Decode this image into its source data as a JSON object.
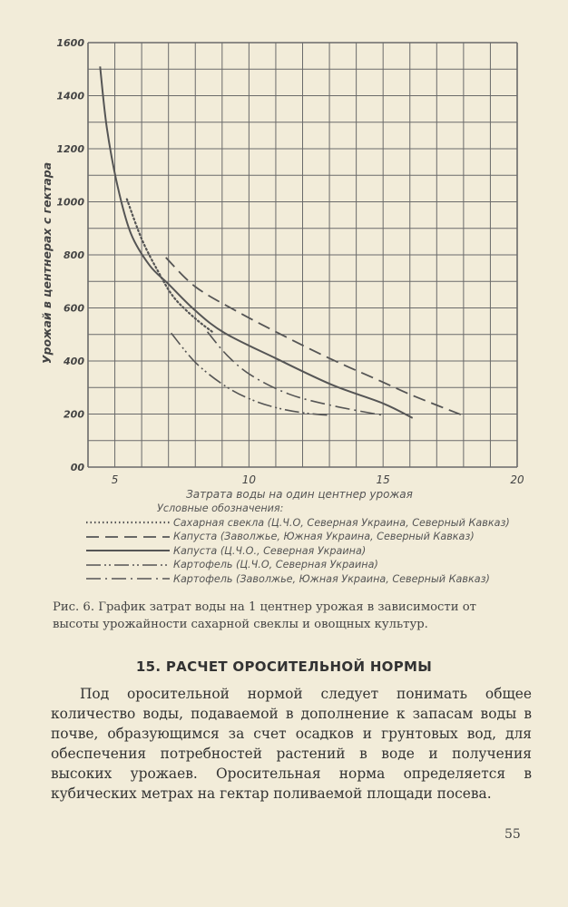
{
  "chart_data": {
    "type": "line",
    "xlabel": "Затрата воды на один центнер урожая",
    "ylabel": "Урожай в центнерах с гектара",
    "xlim": [
      4,
      20
    ],
    "ylim": [
      0,
      1600
    ],
    "x_ticks": [
      "5",
      "10",
      "15",
      "20"
    ],
    "x_tick_values": [
      5,
      10,
      15,
      20
    ],
    "y_ticks": [
      "1600",
      "1400",
      "1200",
      "1000",
      "800",
      "600",
      "400",
      "200",
      "00"
    ],
    "y_tick_values": [
      1600,
      1400,
      1200,
      1000,
      800,
      600,
      400,
      200,
      0
    ],
    "grid": true,
    "grid_step_x": 1,
    "grid_step_y": 100,
    "legend_title": "Условные обозначения:",
    "legend_placement": "below",
    "series": [
      {
        "name": "Сахарная свекла (Ц.Ч.О, Северная Украина, Северный Кавказ)",
        "style": "dotted",
        "points": [
          [
            5.45,
            1010
          ],
          [
            6.0,
            860
          ],
          [
            6.6,
            740
          ],
          [
            7.2,
            640
          ],
          [
            8.0,
            560
          ],
          [
            8.7,
            505
          ]
        ]
      },
      {
        "name": "Капуста (Заволжье, Южная Украина, Северный Кавказ)",
        "style": "dashed",
        "points": [
          [
            6.9,
            790
          ],
          [
            8.0,
            680
          ],
          [
            9.5,
            590
          ],
          [
            11.1,
            505
          ],
          [
            13.0,
            410
          ],
          [
            15.0,
            320
          ],
          [
            16.1,
            270
          ],
          [
            18.1,
            190
          ]
        ]
      },
      {
        "name": "Капуста (Ц.Ч.О., Северная Украина)",
        "style": "solid",
        "points": [
          [
            4.45,
            1510
          ],
          [
            4.7,
            1280
          ],
          [
            5.1,
            1060
          ],
          [
            5.6,
            880
          ],
          [
            6.3,
            760
          ],
          [
            7.0,
            690
          ],
          [
            8.0,
            590
          ],
          [
            9.1,
            505
          ],
          [
            11.0,
            410
          ],
          [
            13.1,
            310
          ],
          [
            15.0,
            240
          ],
          [
            16.1,
            185
          ]
        ]
      },
      {
        "name": "Картофель (Ц.Ч.О, Северная Украина)",
        "style": "dash-dot-dot",
        "points": [
          [
            7.1,
            505
          ],
          [
            8.05,
            390
          ],
          [
            9.2,
            300
          ],
          [
            10.2,
            250
          ],
          [
            11.1,
            222
          ],
          [
            12.0,
            205
          ],
          [
            13.0,
            195
          ]
        ]
      },
      {
        "name": "Картофель (Заволжье, Южная Украина, Северный Кавказ)",
        "style": "dash-dot",
        "points": [
          [
            8.45,
            510
          ],
          [
            9.2,
            420
          ],
          [
            10.1,
            345
          ],
          [
            11.5,
            275
          ],
          [
            13.1,
            232
          ],
          [
            15.0,
            195
          ]
        ]
      }
    ]
  },
  "caption": "Рис. 6. График затрат воды на 1 центнер урожая в зависимости от высоты урожайности сахарной свеклы и овощных культур.",
  "section_heading": "15. РАСЧЕТ ОРОСИТЕЛЬНОЙ НОРМЫ",
  "paragraph": "Под оросительной нормой следует понимать общее количество воды, подаваемой в дополнение к запасам воды в почве, образующимся за счет осадков и грунтовых вод, для обеспечения потребностей растений в воде и получения высоких урожаев. Оросительная норма определяется в кубических метрах на гектар поливаемой площади посева.",
  "page_number": "55",
  "colors": {
    "paper": "#f2ecd9",
    "ink": "#3a3a3a",
    "curve": "#555555"
  }
}
